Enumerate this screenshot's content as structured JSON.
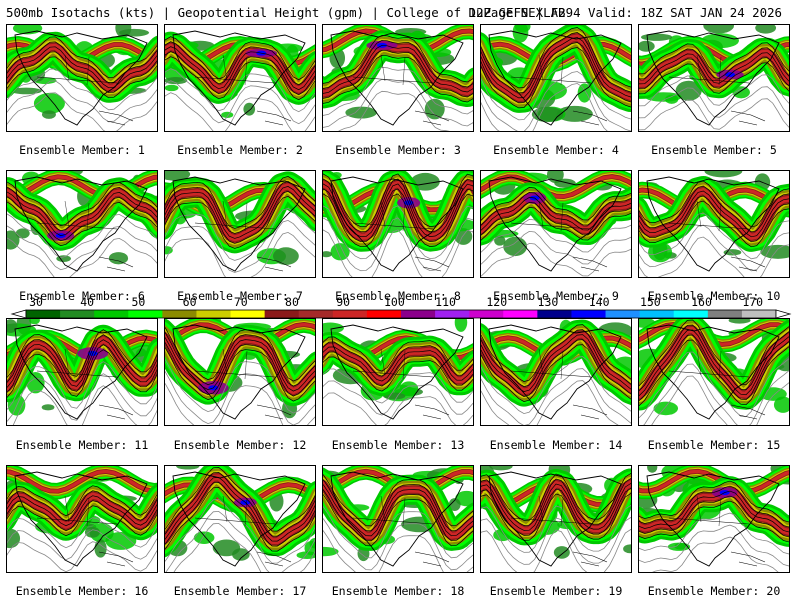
{
  "header": {
    "title_left": "500mb Isotachs (kts) | Geopotential Height (gpm) | College of DuPage NEXLAB",
    "title_right": "12Z GEFS | F294 Valid: 18Z SAT JAN 24 2026"
  },
  "colorbar": {
    "labels": [
      "30",
      "40",
      "50",
      "60",
      "70",
      "80",
      "90",
      "100",
      "110",
      "120",
      "130",
      "140",
      "150",
      "160",
      "170"
    ],
    "colors": [
      "#006400",
      "#228b22",
      "#00c800",
      "#00ff00",
      "#8b8b00",
      "#cdcd00",
      "#ffff00",
      "#8b1a1a",
      "#a52a2a",
      "#cd2626",
      "#ff0000",
      "#8b008b",
      "#a020f0",
      "#cd00cd",
      "#ff00ff",
      "#00008b",
      "#0000ff",
      "#1e90ff",
      "#00bfff",
      "#00ffff",
      "#7f7f7f",
      "#bfbfbf"
    ]
  },
  "members": [
    {
      "label": "Ensemble Member: 1",
      "seed": 11
    },
    {
      "label": "Ensemble Member: 2",
      "seed": 23
    },
    {
      "label": "Ensemble Member: 3",
      "seed": 37
    },
    {
      "label": "Ensemble Member: 4",
      "seed": 41
    },
    {
      "label": "Ensemble Member: 5",
      "seed": 53
    },
    {
      "label": "Ensemble Member: 6",
      "seed": 67
    },
    {
      "label": "Ensemble Member: 7",
      "seed": 71
    },
    {
      "label": "Ensemble Member: 8",
      "seed": 83
    },
    {
      "label": "Ensemble Member: 9",
      "seed": 97
    },
    {
      "label": "Ensemble Member: 10",
      "seed": 101
    },
    {
      "label": "Ensemble Member: 11",
      "seed": 113
    },
    {
      "label": "Ensemble Member: 12",
      "seed": 127
    },
    {
      "label": "Ensemble Member: 13",
      "seed": 131
    },
    {
      "label": "Ensemble Member: 14",
      "seed": 149
    },
    {
      "label": "Ensemble Member: 15",
      "seed": 151
    },
    {
      "label": "Ensemble Member: 16",
      "seed": 163
    },
    {
      "label": "Ensemble Member: 17",
      "seed": 173
    },
    {
      "label": "Ensemble Member: 18",
      "seed": 181
    },
    {
      "label": "Ensemble Member: 19",
      "seed": 191
    },
    {
      "label": "Ensemble Member: 20",
      "seed": 199
    }
  ]
}
